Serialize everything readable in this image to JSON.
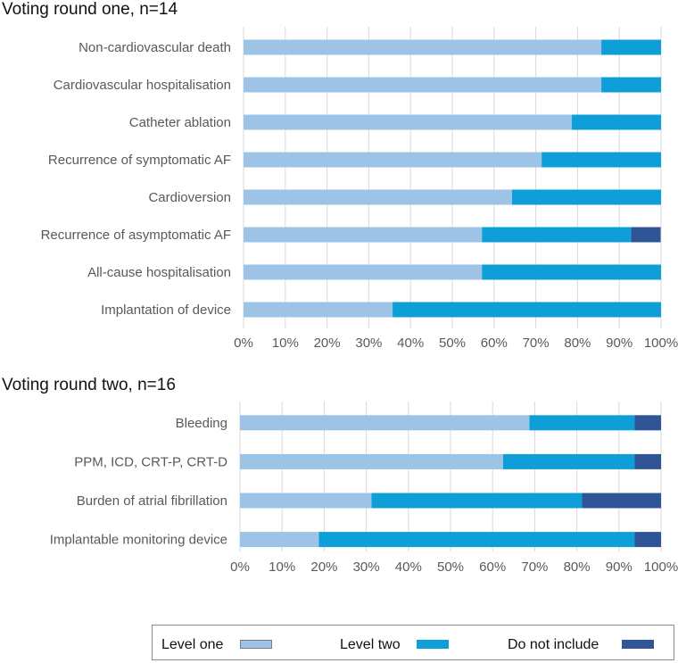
{
  "chart_data": [
    {
      "type": "bar",
      "orientation": "horizontal",
      "stacked": true,
      "title": "Voting round one, n=14",
      "categories": [
        "Non-cardiovascular death",
        "Cardiovascular hospitalisation",
        "Catheter ablation",
        "Recurrence of symptomatic AF",
        "Cardioversion",
        "Recurrence of asymptomatic AF",
        "All-cause hospitalisation",
        "Implantation of device"
      ],
      "series": [
        {
          "name": "Level one",
          "values": [
            85.7,
            85.7,
            78.6,
            71.4,
            64.3,
            57.1,
            57.1,
            35.7
          ]
        },
        {
          "name": "Level two",
          "values": [
            14.3,
            14.3,
            21.4,
            28.6,
            35.7,
            35.7,
            42.9,
            64.3
          ]
        },
        {
          "name": "Do not include",
          "values": [
            0,
            0,
            0,
            0,
            0,
            7.1,
            0,
            0
          ]
        }
      ],
      "xlim": [
        0,
        100
      ],
      "xticks": [
        "0%",
        "10%",
        "20%",
        "30%",
        "40%",
        "50%",
        "60%",
        "70%",
        "80%",
        "90%",
        "100%"
      ],
      "grid": true,
      "xlabel": "",
      "ylabel": ""
    },
    {
      "type": "bar",
      "orientation": "horizontal",
      "stacked": true,
      "title": "Voting round two, n=16",
      "categories": [
        "Bleeding",
        "PPM, ICD, CRT-P, CRT-D",
        "Burden of atrial fibrillation",
        "Implantable monitoring device"
      ],
      "series": [
        {
          "name": "Level one",
          "values": [
            68.75,
            62.5,
            31.25,
            18.75
          ]
        },
        {
          "name": "Level two",
          "values": [
            25.0,
            31.25,
            50.0,
            75.0
          ]
        },
        {
          "name": "Do not include",
          "values": [
            6.25,
            6.25,
            18.75,
            6.25
          ]
        }
      ],
      "xlim": [
        0,
        100
      ],
      "xticks": [
        "0%",
        "10%",
        "20%",
        "30%",
        "40%",
        "50%",
        "60%",
        "70%",
        "80%",
        "90%",
        "100%"
      ],
      "grid": true,
      "xlabel": "",
      "ylabel": ""
    }
  ],
  "legend": {
    "position": "bottom",
    "items": [
      {
        "label": "Level one",
        "color": "#9DC3E6"
      },
      {
        "label": "Level two",
        "color": "#0E9FD8"
      },
      {
        "label": "Do not include",
        "color": "#2F5597"
      }
    ]
  },
  "colors": {
    "grid": "#d9d9d9",
    "text": "#595959"
  }
}
